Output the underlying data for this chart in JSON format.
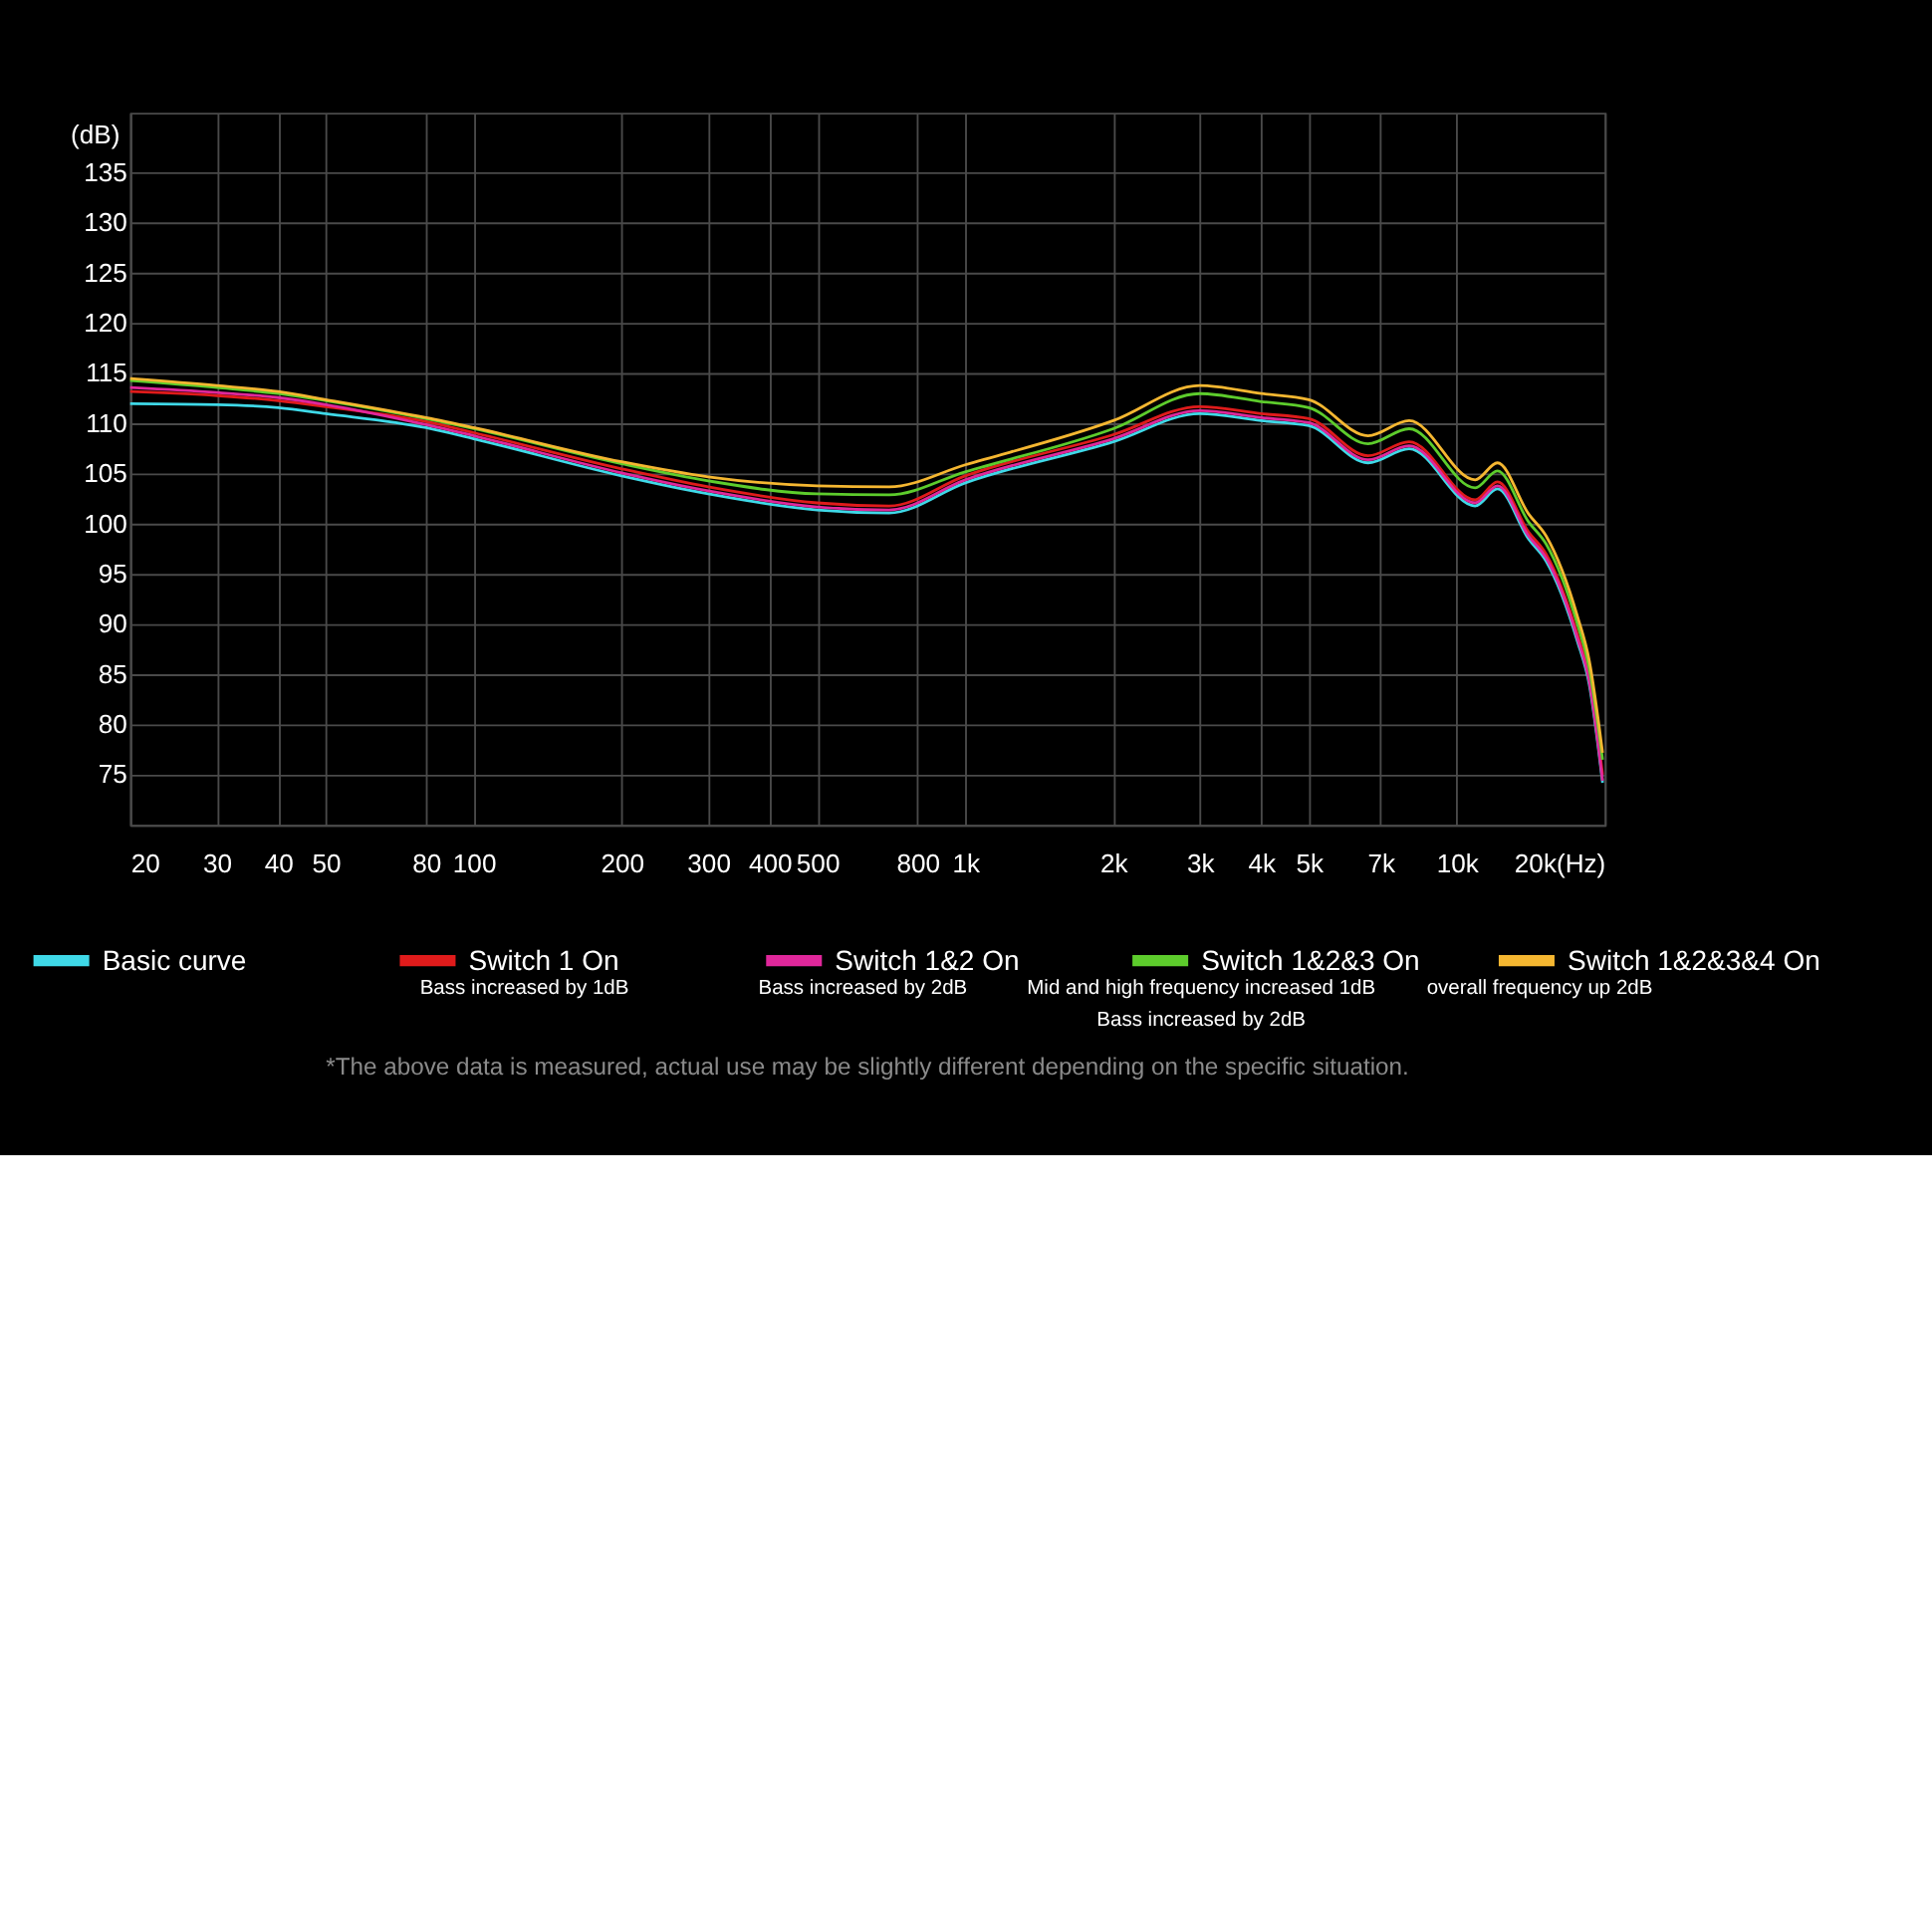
{
  "chart_data": {
    "type": "line",
    "ylabel": "(dB)",
    "x": [
      20,
      30,
      40,
      50,
      80,
      100,
      200,
      300,
      500,
      700,
      1000,
      2000,
      3000,
      4000,
      5000,
      6600,
      8000,
      10900,
      12100,
      14000,
      15200,
      17600,
      18600,
      19800
    ],
    "series": [
      {
        "name": "Basic curve",
        "color": "#3fd9e8",
        "values": [
          112.0,
          111.9,
          111.6,
          111.0,
          109.6,
          108.5,
          104.8,
          103.0,
          101.4,
          101.1,
          104.1,
          108.2,
          111.0,
          110.3,
          109.8,
          106.1,
          107.5,
          101.8,
          103.5,
          98.5,
          96.3,
          88.3,
          84.0,
          74.2
        ]
      },
      {
        "name": "Switch 1 On",
        "color": "#e01b1b",
        "values": [
          113.2,
          112.8,
          112.3,
          111.7,
          110.2,
          109.1,
          105.5,
          103.7,
          102.1,
          101.8,
          104.8,
          108.9,
          111.7,
          111.0,
          110.5,
          106.8,
          108.2,
          102.4,
          104.2,
          99.2,
          97.0,
          89.0,
          84.8,
          75.0
        ]
      },
      {
        "name": "Switch 1&2 On",
        "color": "#e0279b",
        "values": [
          113.6,
          113.1,
          112.6,
          111.9,
          109.9,
          108.8,
          105.1,
          103.3,
          101.7,
          101.4,
          104.4,
          108.5,
          111.3,
          110.6,
          110.1,
          106.4,
          107.8,
          102.1,
          103.8,
          98.8,
          96.6,
          88.6,
          84.3,
          74.4
        ]
      },
      {
        "name": "Switch 1&2&3 On",
        "color": "#5dcc2c",
        "values": [
          114.3,
          113.6,
          113.0,
          112.3,
          110.5,
          109.5,
          106.0,
          104.3,
          103.0,
          102.9,
          105.2,
          109.5,
          113.0,
          112.2,
          111.6,
          108.0,
          109.5,
          103.6,
          105.3,
          100.2,
          98.0,
          90.0,
          85.6,
          76.5
        ]
      },
      {
        "name": "Switch 1&2&3&4 On",
        "color": "#f5b731",
        "values": [
          114.5,
          113.8,
          113.2,
          112.4,
          110.6,
          109.6,
          106.2,
          104.7,
          103.8,
          103.7,
          105.9,
          110.3,
          113.8,
          113.0,
          112.4,
          108.8,
          110.3,
          104.4,
          106.1,
          101.0,
          98.8,
          90.8,
          86.4,
          77.2
        ]
      }
    ],
    "log": "x",
    "xlim": [
      20,
      20000
    ],
    "ylim": [
      70,
      141
    ],
    "xticks": [
      20,
      30,
      40,
      50,
      80,
      100,
      200,
      300,
      400,
      500,
      800,
      {
        "value": 1000,
        "label": "1k"
      },
      {
        "value": 2000,
        "label": "2k"
      },
      {
        "value": 3000,
        "label": "3k"
      },
      {
        "value": 4000,
        "label": "4k"
      },
      {
        "value": 5000,
        "label": "5k"
      },
      {
        "value": 7000,
        "label": "7k"
      },
      {
        "value": 10000,
        "label": "10k"
      },
      {
        "value": 20000,
        "label": "20k(Hz)"
      }
    ],
    "yticks": [
      75,
      80,
      85,
      90,
      95,
      100,
      105,
      110,
      115,
      120,
      125,
      130,
      135
    ],
    "grid": true,
    "legend": "bottom",
    "marker": "none",
    "line_style": "solid",
    "annotations": [
      "Bass increased by 1dB",
      "Bass increased by 2dB",
      "Mid and high frequency increased 1dB\nBass increased by 2dB",
      "overall frequency up 2dB",
      "*The above data is measured, actual use may be slightly different depending on the specific situation."
    ]
  }
}
